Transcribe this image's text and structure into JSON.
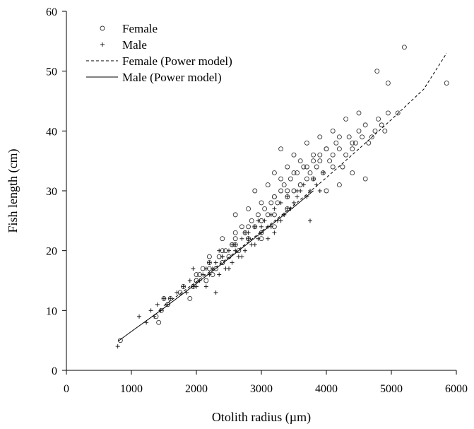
{
  "chart_data": {
    "type": "scatter",
    "title": "",
    "xlabel": "Otolith radius (µm)",
    "ylabel": "Fish length (cm)",
    "xlim": [
      0,
      6000
    ],
    "ylim": [
      0,
      60
    ],
    "xticks": [
      0,
      1000,
      2000,
      3000,
      4000,
      5000,
      6000
    ],
    "yticks": [
      0,
      10,
      20,
      30,
      40,
      50,
      60
    ],
    "grid": false,
    "legend_position": "top-left",
    "legend": [
      {
        "label": "Female",
        "marker": "circle"
      },
      {
        "label": "Male",
        "marker": "plus"
      },
      {
        "label": "Female (Power model)",
        "line": "dashed"
      },
      {
        "label": "Male (Power model)",
        "line": "solid"
      }
    ],
    "series": [
      {
        "name": "Female",
        "marker": "circle",
        "x": [
          830,
          1380,
          1420,
          1460,
          1500,
          1560,
          1600,
          1750,
          1900,
          1950,
          2000,
          2050,
          2100,
          2150,
          2200,
          2250,
          2300,
          2350,
          2400,
          2450,
          2500,
          2550,
          2600,
          2650,
          2700,
          2750,
          2800,
          2850,
          2900,
          2950,
          3000,
          3050,
          3100,
          3150,
          3200,
          3250,
          3300,
          3350,
          3400,
          3450,
          3500,
          3550,
          3600,
          3650,
          3700,
          3750,
          3800,
          3850,
          3900,
          3950,
          4000,
          4050,
          4100,
          4150,
          4200,
          4250,
          4300,
          4350,
          4400,
          4450,
          4500,
          4550,
          4600,
          4650,
          4700,
          4750,
          4800,
          4850,
          4900,
          4950,
          5100,
          5200,
          5850,
          4780,
          4950,
          3300,
          3500,
          3700,
          3900,
          4100,
          4300,
          4500,
          3200,
          3400,
          3600,
          3800,
          4000,
          4200,
          4400,
          2900,
          3100,
          3300,
          3500,
          3700,
          3900,
          4100,
          2600,
          2800,
          3000,
          3200,
          3400,
          3600,
          3800,
          2400,
          2600,
          2800,
          3000,
          3200,
          3400,
          2200,
          2400,
          2600,
          2800,
          3000,
          2000,
          2200,
          2400,
          1800,
          2000,
          4600,
          4000,
          4200,
          4400,
          3000,
          3200
        ],
        "y": [
          5,
          9,
          8,
          10,
          12,
          11,
          12,
          13,
          12,
          14,
          15,
          16,
          17,
          15,
          18,
          16,
          17,
          19,
          18,
          20,
          19,
          21,
          22,
          20,
          24,
          23,
          22,
          25,
          24,
          26,
          25,
          27,
          26,
          28,
          29,
          28,
          30,
          31,
          29,
          32,
          30,
          33,
          31,
          34,
          32,
          33,
          35,
          34,
          36,
          33,
          37,
          35,
          36,
          38,
          37,
          34,
          36,
          39,
          37,
          38,
          40,
          39,
          41,
          38,
          39,
          40,
          42,
          41,
          40,
          43,
          43,
          54,
          48,
          50,
          48,
          37,
          36,
          38,
          39,
          40,
          42,
          43,
          33,
          34,
          35,
          36,
          37,
          39,
          38,
          30,
          31,
          32,
          33,
          34,
          35,
          34,
          26,
          27,
          28,
          29,
          30,
          31,
          32,
          22,
          23,
          24,
          25,
          26,
          27,
          19,
          20,
          21,
          22,
          23,
          16,
          17,
          18,
          14,
          15,
          32,
          30,
          31,
          33,
          22,
          24
        ]
      },
      {
        "name": "Male",
        "marker": "plus",
        "x": [
          790,
          1120,
          1230,
          1300,
          1350,
          1400,
          1450,
          1500,
          1550,
          1600,
          1700,
          1800,
          1850,
          1900,
          1950,
          2000,
          2050,
          2100,
          2150,
          2200,
          2250,
          2300,
          2350,
          2400,
          2450,
          2500,
          2550,
          2600,
          2650,
          2700,
          2750,
          2800,
          2850,
          2900,
          2950,
          3000,
          3050,
          3100,
          3150,
          3200,
          3250,
          3300,
          3350,
          3400,
          3450,
          3500,
          3550,
          3600,
          3650,
          3700,
          3750,
          3800,
          3850,
          3900,
          3950,
          2300,
          2500,
          2700,
          2900,
          3100,
          3300,
          2200,
          2400,
          2600,
          2800,
          3000,
          3200,
          3400,
          1950,
          2150,
          2350,
          2550,
          2750,
          2950,
          3150,
          3350,
          3550,
          3750
        ],
        "y": [
          4,
          9,
          8,
          10,
          9,
          11,
          10,
          12,
          11,
          12,
          13,
          14,
          13,
          15,
          17,
          14,
          15,
          16,
          14,
          16,
          17,
          18,
          16,
          19,
          17,
          20,
          18,
          21,
          19,
          22,
          20,
          23,
          21,
          24,
          22,
          23,
          25,
          24,
          26,
          27,
          25,
          28,
          26,
          29,
          27,
          28,
          29,
          30,
          31,
          29,
          30,
          32,
          31,
          30,
          33,
          13,
          17,
          19,
          21,
          22,
          25,
          18,
          19,
          20,
          22,
          24,
          23,
          27,
          14,
          17,
          20,
          21,
          23,
          25,
          24,
          26,
          30,
          25
        ]
      },
      {
        "name": "Female (Power model)",
        "line": "dashed",
        "x": [
          1500,
          2000,
          2500,
          3000,
          3500,
          4000,
          4500,
          5000,
          5500,
          5850
        ],
        "y": [
          10.8,
          14.8,
          18.9,
          23.2,
          27.6,
          32.2,
          37.0,
          41.9,
          47.0,
          53.0
        ]
      },
      {
        "name": "Male (Power model)",
        "line": "solid",
        "x": [
          800,
          1000,
          1500,
          2000,
          2500,
          3000,
          3500,
          3800
        ],
        "y": [
          4.9,
          6.5,
          10.4,
          14.5,
          18.7,
          23.0,
          27.3,
          30.0
        ]
      }
    ]
  }
}
